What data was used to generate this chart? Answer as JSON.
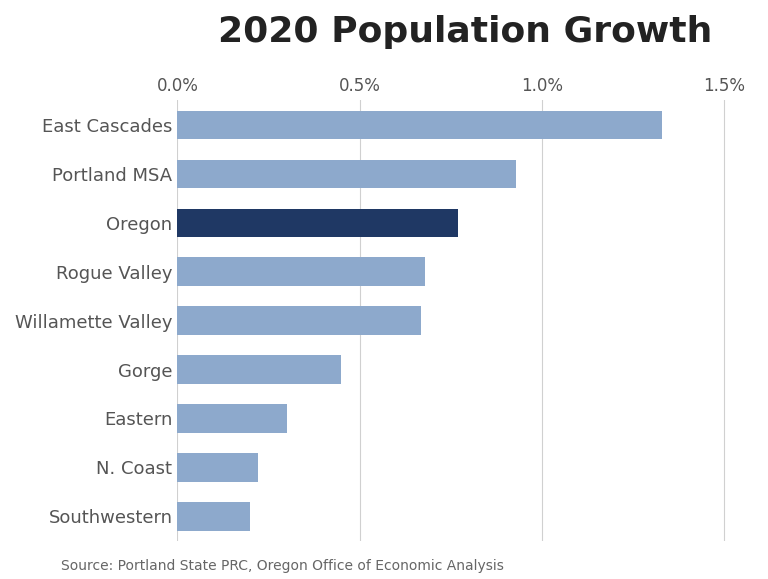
{
  "title": "2020 Population Growth",
  "categories": [
    "East Cascades",
    "Portland MSA",
    "Oregon",
    "Rogue Valley",
    "Willamette Valley",
    "Gorge",
    "Eastern",
    "N. Coast",
    "Southwestern"
  ],
  "values": [
    1.33,
    0.93,
    0.77,
    0.68,
    0.67,
    0.45,
    0.3,
    0.22,
    0.2
  ],
  "bar_colors": [
    "#8da9cc",
    "#8da9cc",
    "#1f3864",
    "#8da9cc",
    "#8da9cc",
    "#8da9cc",
    "#8da9cc",
    "#8da9cc",
    "#8da9cc"
  ],
  "source_text": "Source: Portland State PRC, Oregon Office of Economic Analysis",
  "title_fontsize": 26,
  "label_fontsize": 13,
  "tick_fontsize": 12,
  "source_fontsize": 10,
  "background_color": "#ffffff",
  "grid_color": "#d0d0d0"
}
